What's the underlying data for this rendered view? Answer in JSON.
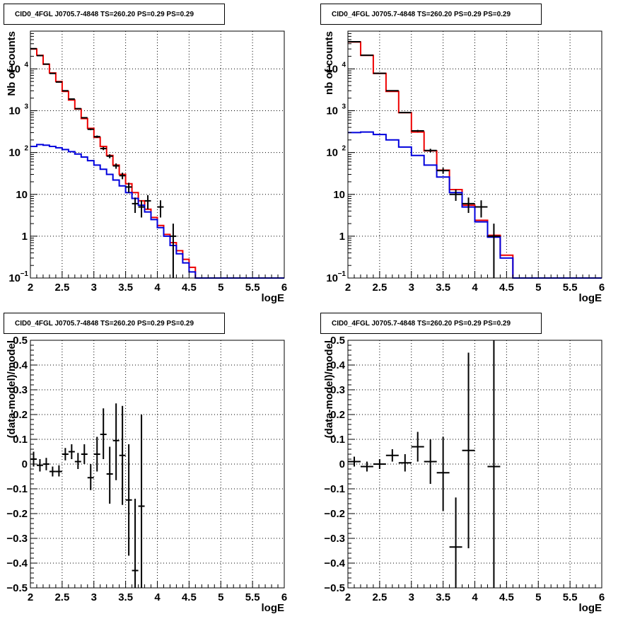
{
  "panels": [
    {
      "title": "CID0_4FGL J0705.7-4848 TS=260.20 PS=0.29 PS=0.29",
      "xlabel": "logE",
      "ylabel": "Nb of counts",
      "xlim": [
        2,
        6
      ],
      "ylim": [
        0.1,
        80000
      ],
      "log_y": true,
      "grid": true,
      "x_ticks": [
        "2",
        "2.5",
        "3",
        "3.5",
        "4",
        "4.5",
        "5",
        "5.5",
        "6"
      ],
      "y_ticks": [
        {
          "value": 0.1,
          "label": "10",
          "sup": "−1"
        },
        {
          "value": 1,
          "label": "1",
          "sup": ""
        },
        {
          "value": 10,
          "label": "10",
          "sup": ""
        },
        {
          "value": 100,
          "label": "10",
          "sup": "2"
        },
        {
          "value": 1000,
          "label": "10",
          "sup": "3"
        },
        {
          "value": 10000,
          "label": "10",
          "sup": "4"
        }
      ]
    },
    {
      "title": "CID0_4FGL J0705.7-4848 TS=260.20 PS=0.29 PS=0.29",
      "xlabel": "logE",
      "ylabel": "nb of counts",
      "xlim": [
        2,
        6
      ],
      "ylim": [
        0.1,
        80000
      ],
      "log_y": true,
      "grid": true,
      "x_ticks": [
        "2",
        "2.5",
        "3",
        "3.5",
        "4",
        "4.5",
        "5",
        "5.5",
        "6"
      ],
      "y_ticks": [
        {
          "value": 0.1,
          "label": "10",
          "sup": "−1"
        },
        {
          "value": 1,
          "label": "1",
          "sup": ""
        },
        {
          "value": 10,
          "label": "10",
          "sup": ""
        },
        {
          "value": 100,
          "label": "10",
          "sup": "2"
        },
        {
          "value": 1000,
          "label": "10",
          "sup": "3"
        },
        {
          "value": 10000,
          "label": "10",
          "sup": "4"
        }
      ]
    },
    {
      "title": "CID0_4FGL J0705.7-4848 TS=260.20 PS=0.29 PS=0.29",
      "xlabel": "logE",
      "ylabel": "(data-model)/model",
      "xlim": [
        2,
        6
      ],
      "ylim": [
        -0.5,
        0.5
      ],
      "log_y": false,
      "grid": true,
      "x_ticks": [
        "2",
        "2.5",
        "3",
        "3.5",
        "4",
        "4.5",
        "5",
        "5.5",
        "6"
      ],
      "y_ticks": [
        {
          "value": -0.5,
          "label": "−0.5",
          "sup": ""
        },
        {
          "value": -0.4,
          "label": "−0.4",
          "sup": ""
        },
        {
          "value": -0.3,
          "label": "−0.3",
          "sup": ""
        },
        {
          "value": -0.2,
          "label": "−0.2",
          "sup": ""
        },
        {
          "value": -0.1,
          "label": "−0.1",
          "sup": ""
        },
        {
          "value": 0,
          "label": "0",
          "sup": ""
        },
        {
          "value": 0.1,
          "label": "0.1",
          "sup": ""
        },
        {
          "value": 0.2,
          "label": "0.2",
          "sup": ""
        },
        {
          "value": 0.3,
          "label": "0.3",
          "sup": ""
        },
        {
          "value": 0.4,
          "label": "0.4",
          "sup": ""
        },
        {
          "value": 0.5,
          "label": "0.5",
          "sup": ""
        }
      ]
    },
    {
      "title": "CID0_4FGL J0705.7-4848 TS=260.20 PS=0.29 PS=0.29",
      "xlabel": "logE",
      "ylabel": "(data-model)/model",
      "xlim": [
        2,
        6
      ],
      "ylim": [
        -0.5,
        0.5
      ],
      "log_y": false,
      "grid": true,
      "x_ticks": [
        "2",
        "2.5",
        "3",
        "3.5",
        "4",
        "4.5",
        "5",
        "5.5",
        "6"
      ],
      "y_ticks": [
        {
          "value": -0.5,
          "label": "−0.5",
          "sup": ""
        },
        {
          "value": -0.4,
          "label": "−0.4",
          "sup": ""
        },
        {
          "value": -0.3,
          "label": "−0.3",
          "sup": ""
        },
        {
          "value": -0.2,
          "label": "−0.2",
          "sup": ""
        },
        {
          "value": -0.1,
          "label": "−0.1",
          "sup": ""
        },
        {
          "value": 0,
          "label": "0",
          "sup": ""
        },
        {
          "value": 0.1,
          "label": "0.1",
          "sup": ""
        },
        {
          "value": 0.2,
          "label": "0.2",
          "sup": ""
        },
        {
          "value": 0.3,
          "label": "0.3",
          "sup": ""
        },
        {
          "value": 0.4,
          "label": "0.4",
          "sup": ""
        },
        {
          "value": 0.5,
          "label": "0.5",
          "sup": ""
        }
      ]
    }
  ],
  "colors": {
    "total_model": "#ee0000",
    "background_model": "#0000dd",
    "data": "#000000",
    "grid": "#000000"
  },
  "chart_data": [
    {
      "type": "line",
      "title": "CID0_4FGL J0705.7-4848 TS=260.20 PS=0.29 PS=0.29",
      "xlabel": "logE",
      "ylabel": "Nb of counts",
      "xlim": [
        2,
        6
      ],
      "ylim": [
        0.1,
        80000
      ],
      "y_scale": "log",
      "grid": true,
      "bin_edges": [
        2.0,
        2.1,
        2.2,
        2.3,
        2.4,
        2.5,
        2.6,
        2.7,
        2.8,
        2.9,
        3.0,
        3.1,
        3.2,
        3.3,
        3.4,
        3.5,
        3.6,
        3.7,
        3.8,
        3.9,
        4.0,
        4.1,
        4.2,
        4.3,
        4.4,
        4.5,
        4.6,
        4.7,
        4.8,
        4.9,
        5.0,
        5.1,
        5.2,
        5.3,
        5.4,
        5.5,
        5.6,
        5.7,
        5.8,
        5.9,
        6.0
      ],
      "series": [
        {
          "values": [
            30000,
            21000,
            13000,
            8000,
            5000,
            2900,
            1800,
            1100,
            650,
            380,
            230,
            140,
            85,
            50,
            30,
            18,
            11,
            7,
            4.4,
            2.8,
            1.8,
            1.1,
            0.7,
            0.45,
            0.28,
            0.18,
            0.1,
            0.1,
            0.1,
            0.1,
            0.1,
            0.1,
            0.1,
            0.1,
            0.1,
            0.1,
            0.1,
            0.1,
            0.1,
            0.1
          ],
          "color": "#ee0000"
        },
        {
          "values": [
            140,
            155,
            150,
            140,
            130,
            118,
            105,
            92,
            78,
            64,
            50,
            40,
            30,
            22,
            16,
            11,
            8,
            5.5,
            3.8,
            2.5,
            1.6,
            1.0,
            0.6,
            0.38,
            0.23,
            0.14,
            0.1,
            0.1,
            0.1,
            0.1,
            0.1,
            0.1,
            0.1,
            0.1,
            0.1,
            0.1,
            0.1,
            0.1,
            0.1,
            0.1
          ],
          "color": "#0000dd"
        }
      ],
      "data_points": [
        {
          "x": 2.05,
          "y": 30500,
          "ylo": 30300,
          "yhi": 30700
        },
        {
          "x": 2.15,
          "y": 20800,
          "ylo": 20600,
          "yhi": 21000
        },
        {
          "x": 2.25,
          "y": 13000,
          "ylo": 12850,
          "yhi": 13150
        },
        {
          "x": 2.35,
          "y": 7800,
          "ylo": 7700,
          "yhi": 7900
        },
        {
          "x": 2.45,
          "y": 4850,
          "ylo": 4780,
          "yhi": 4920
        },
        {
          "x": 2.55,
          "y": 3000,
          "ylo": 2940,
          "yhi": 3060
        },
        {
          "x": 2.65,
          "y": 1900,
          "ylo": 1850,
          "yhi": 1950
        },
        {
          "x": 2.75,
          "y": 1120,
          "ylo": 1085,
          "yhi": 1155
        },
        {
          "x": 2.85,
          "y": 680,
          "ylo": 655,
          "yhi": 705
        },
        {
          "x": 2.95,
          "y": 360,
          "ylo": 342,
          "yhi": 378
        },
        {
          "x": 3.05,
          "y": 240,
          "ylo": 225,
          "yhi": 255
        },
        {
          "x": 3.15,
          "y": 125,
          "ylo": 114,
          "yhi": 136
        },
        {
          "x": 3.25,
          "y": 82,
          "ylo": 73,
          "yhi": 91
        },
        {
          "x": 3.35,
          "y": 48,
          "ylo": 41,
          "yhi": 55
        },
        {
          "x": 3.45,
          "y": 28,
          "ylo": 23,
          "yhi": 33
        },
        {
          "x": 3.55,
          "y": 15,
          "ylo": 11,
          "yhi": 19
        },
        {
          "x": 3.65,
          "y": 6,
          "ylo": 3.6,
          "yhi": 8.4
        },
        {
          "x": 3.75,
          "y": 5,
          "ylo": 2.8,
          "yhi": 7.2
        },
        {
          "x": 3.85,
          "y": 7,
          "ylo": 4.4,
          "yhi": 9.6
        },
        {
          "x": 4.05,
          "y": 5,
          "ylo": 2.8,
          "yhi": 7.2
        },
        {
          "x": 4.25,
          "y": 1,
          "ylo": 0.1,
          "yhi": 2
        }
      ]
    },
    {
      "type": "line",
      "title": "CID0_4FGL J0705.7-4848 TS=260.20 PS=0.29 PS=0.29",
      "xlabel": "logE",
      "ylabel": "nb of counts",
      "xlim": [
        2,
        6
      ],
      "ylim": [
        0.1,
        80000
      ],
      "y_scale": "log",
      "grid": true,
      "bin_edges": [
        2.0,
        2.2,
        2.4,
        2.6,
        2.8,
        3.0,
        3.2,
        3.4,
        3.6,
        3.8,
        4.0,
        4.2,
        4.4,
        4.6,
        4.8,
        5.0,
        5.2,
        5.4,
        5.6,
        5.8,
        6.0
      ],
      "series": [
        {
          "values": [
            44000,
            21000,
            7800,
            2900,
            900,
            310,
            110,
            38,
            13,
            5.5,
            2.4,
            1.05,
            0.35,
            0.1,
            0.1,
            0.1,
            0.1,
            0.1,
            0.1,
            0.1
          ],
          "color": "#ee0000"
        },
        {
          "values": [
            300,
            310,
            270,
            200,
            135,
            85,
            50,
            26,
            11,
            5,
            2.2,
            0.95,
            0.3,
            0.1,
            0.1,
            0.1,
            0.1,
            0.1,
            0.1,
            0.1
          ],
          "color": "#0000dd"
        }
      ],
      "data_points": [
        {
          "x": 2.1,
          "y": 44500,
          "ylo": 44200,
          "yhi": 44800
        },
        {
          "x": 2.3,
          "y": 21200,
          "ylo": 21000,
          "yhi": 21400
        },
        {
          "x": 2.5,
          "y": 7850,
          "ylo": 7750,
          "yhi": 7950
        },
        {
          "x": 2.7,
          "y": 3000,
          "ylo": 2940,
          "yhi": 3060
        },
        {
          "x": 2.9,
          "y": 905,
          "ylo": 875,
          "yhi": 935
        },
        {
          "x": 3.1,
          "y": 330,
          "ylo": 312,
          "yhi": 348
        },
        {
          "x": 3.3,
          "y": 112,
          "ylo": 101,
          "yhi": 123
        },
        {
          "x": 3.5,
          "y": 37,
          "ylo": 31,
          "yhi": 43
        },
        {
          "x": 3.7,
          "y": 10,
          "ylo": 7,
          "yhi": 13
        },
        {
          "x": 3.9,
          "y": 6,
          "ylo": 3.6,
          "yhi": 8.4
        },
        {
          "x": 4.1,
          "y": 5,
          "ylo": 2.8,
          "yhi": 7.2
        },
        {
          "x": 4.3,
          "y": 1,
          "ylo": 0.1,
          "yhi": 2
        }
      ]
    },
    {
      "type": "scatter",
      "title": "CID0_4FGL J0705.7-4848 TS=260.20 PS=0.29 PS=0.29",
      "xlabel": "logE",
      "ylabel": "(data-model)/model",
      "xlim": [
        2,
        6
      ],
      "ylim": [
        -0.5,
        0.5
      ],
      "grid": true,
      "half_bin_width": 0.05,
      "data_points": [
        {
          "x": 2.05,
          "y": 0.02,
          "ylo": -0.01,
          "yhi": 0.05
        },
        {
          "x": 2.15,
          "y": -0.005,
          "ylo": -0.03,
          "yhi": 0.02
        },
        {
          "x": 2.25,
          "y": 0.0,
          "ylo": -0.025,
          "yhi": 0.025
        },
        {
          "x": 2.35,
          "y": -0.03,
          "ylo": -0.05,
          "yhi": -0.01
        },
        {
          "x": 2.45,
          "y": -0.03,
          "ylo": -0.05,
          "yhi": -0.005
        },
        {
          "x": 2.55,
          "y": 0.04,
          "ylo": 0.015,
          "yhi": 0.065
        },
        {
          "x": 2.65,
          "y": 0.05,
          "ylo": 0.02,
          "yhi": 0.08
        },
        {
          "x": 2.75,
          "y": 0.01,
          "ylo": -0.02,
          "yhi": 0.045
        },
        {
          "x": 2.85,
          "y": 0.04,
          "ylo": 0.0,
          "yhi": 0.08
        },
        {
          "x": 2.95,
          "y": -0.055,
          "ylo": -0.105,
          "yhi": 0.0
        },
        {
          "x": 3.05,
          "y": 0.04,
          "ylo": -0.03,
          "yhi": 0.11
        },
        {
          "x": 3.15,
          "y": 0.12,
          "ylo": 0.02,
          "yhi": 0.225
        },
        {
          "x": 3.25,
          "y": -0.04,
          "ylo": -0.16,
          "yhi": 0.07
        },
        {
          "x": 3.35,
          "y": 0.095,
          "ylo": -0.065,
          "yhi": 0.245
        },
        {
          "x": 3.45,
          "y": 0.035,
          "ylo": -0.165,
          "yhi": 0.235
        },
        {
          "x": 3.55,
          "y": -0.145,
          "ylo": -0.37,
          "yhi": 0.08
        },
        {
          "x": 3.65,
          "y": -0.43,
          "ylo": -0.5,
          "yhi": -0.14
        },
        {
          "x": 3.75,
          "y": -0.17,
          "ylo": -0.5,
          "yhi": 0.2
        }
      ]
    },
    {
      "type": "scatter",
      "title": "CID0_4FGL J0705.7-4848 TS=260.20 PS=0.29 PS=0.29",
      "xlabel": "logE",
      "ylabel": "(data-model)/model",
      "xlim": [
        2,
        6
      ],
      "ylim": [
        -0.5,
        0.5
      ],
      "grid": true,
      "half_bin_width": 0.1,
      "data_points": [
        {
          "x": 2.1,
          "y": 0.01,
          "ylo": -0.01,
          "yhi": 0.03
        },
        {
          "x": 2.3,
          "y": -0.01,
          "ylo": -0.03,
          "yhi": 0.01
        },
        {
          "x": 2.5,
          "y": 0.0,
          "ylo": -0.02,
          "yhi": 0.02
        },
        {
          "x": 2.7,
          "y": 0.035,
          "ylo": 0.01,
          "yhi": 0.06
        },
        {
          "x": 2.9,
          "y": 0.005,
          "ylo": -0.03,
          "yhi": 0.04
        },
        {
          "x": 3.1,
          "y": 0.07,
          "ylo": 0.01,
          "yhi": 0.13
        },
        {
          "x": 3.3,
          "y": 0.01,
          "ylo": -0.08,
          "yhi": 0.1
        },
        {
          "x": 3.5,
          "y": -0.035,
          "ylo": -0.19,
          "yhi": 0.11
        },
        {
          "x": 3.7,
          "y": -0.335,
          "ylo": -0.5,
          "yhi": -0.135
        },
        {
          "x": 3.9,
          "y": 0.055,
          "ylo": -0.34,
          "yhi": 0.45
        },
        {
          "x": 4.3,
          "y": -0.01,
          "ylo": -0.5,
          "yhi": 0.5
        }
      ]
    }
  ]
}
